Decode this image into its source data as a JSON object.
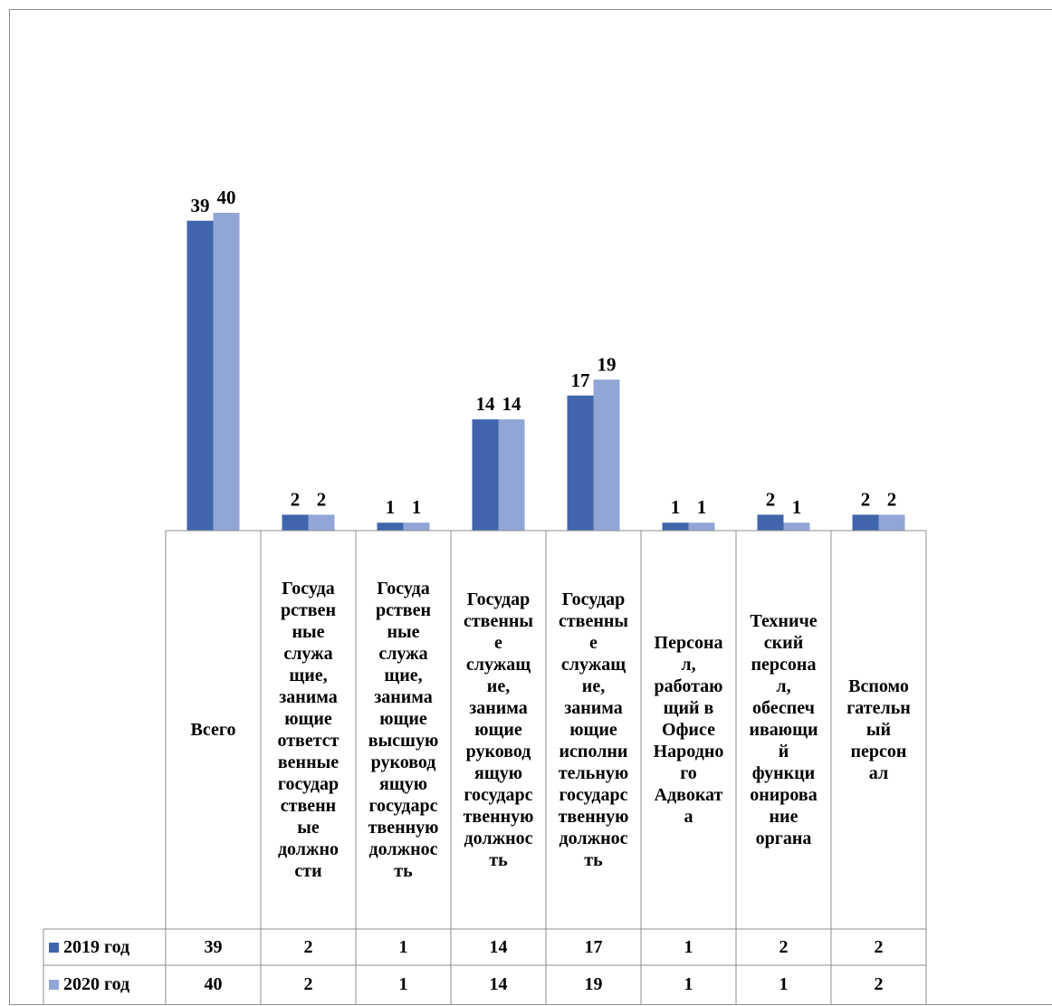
{
  "chart_data": {
    "type": "bar",
    "categories": [
      "Всего",
      "Государственные служащие, занимающие ответственные государственные должности",
      "Государственные служащие, занимающие высшую руководящую государственную должность",
      "Государственные служащие, занимающие руководящую государственную должность",
      "Государственные служащие, занимающие исполнительную государственную должность",
      "Персонал, работающий в Офисе Народного Адвоката",
      "Технический персонал, обеспечивающий функционирование органа",
      "Вспомогательный персонал"
    ],
    "category_lines": [
      [
        "Всего"
      ],
      [
        "Госуда",
        "рствен",
        "ные",
        "служа",
        "щие,",
        "занима",
        "ющие",
        "ответст",
        "венные",
        "государ",
        "ственн",
        "ые",
        "должно",
        "сти"
      ],
      [
        "Госуда",
        "рствен",
        "ные",
        "служа",
        "щие,",
        "занима",
        "ющие",
        "высшую",
        "руковод",
        "ящую",
        "государс",
        "твенную",
        "должнос",
        "ть"
      ],
      [
        "Государ",
        "ственны",
        "е",
        "служащ",
        "ие,",
        "занима",
        "ющие",
        "руковод",
        "ящую",
        "государс",
        "твенную",
        "должнос",
        "ть"
      ],
      [
        "Государ",
        "ственны",
        "е",
        "служащ",
        "ие,",
        "занима",
        "ющие",
        "исполни",
        "тельную",
        "государс",
        "твенную",
        "должнос",
        "ть"
      ],
      [
        "Персона",
        "л,",
        "работаю",
        "щий в",
        "Офисе",
        "Народно",
        "го",
        "Адвокат",
        "а"
      ],
      [
        "Техниче",
        "ский",
        "персона",
        "л,",
        "обеспеч",
        "ивающи",
        "й",
        "функци",
        "онирова",
        "ние",
        "органа"
      ],
      [
        "Вспомо",
        "гательн",
        "ый",
        "персон",
        "ал"
      ]
    ],
    "series": [
      {
        "name": "2019 год",
        "values": [
          39,
          2,
          1,
          14,
          17,
          1,
          2,
          2
        ],
        "color": "#4065ad"
      },
      {
        "name": "2020 год",
        "values": [
          40,
          2,
          1,
          14,
          19,
          1,
          1,
          2
        ],
        "color": "#91a5d6"
      }
    ],
    "ylim": [
      0,
      40
    ],
    "grid": false,
    "legend": "data-table"
  }
}
